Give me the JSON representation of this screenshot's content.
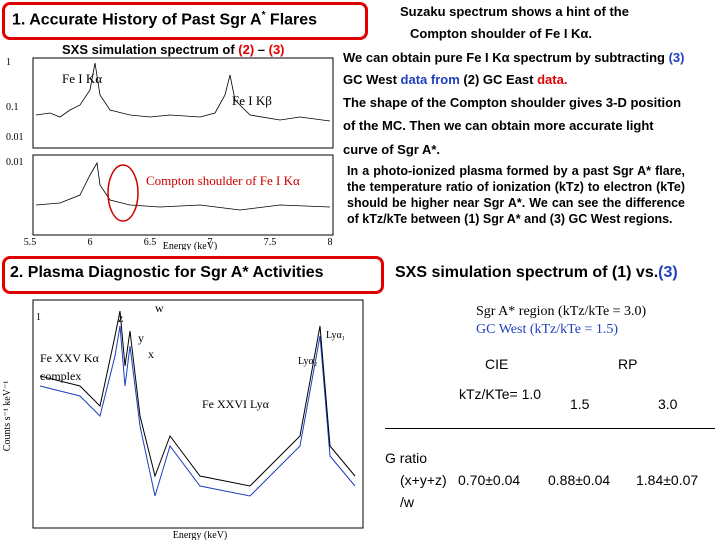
{
  "section1": {
    "title": "1.  Accurate History of Past Sgr A",
    "title_sup": "*",
    "title_end": " Flares",
    "figure": {
      "caption": [
        "SXS simulation spectrum of ",
        "(2)",
        " – ",
        "(3)"
      ],
      "yticks": [
        "1",
        "0.1",
        "0.01"
      ],
      "xticks": [
        "5.5",
        "6",
        "6.5",
        "7",
        "7.5",
        "8"
      ],
      "xlabel": "Energy (keV)",
      "labels": [
        "Fe I Kα",
        "Fe I Kβ",
        "Compton shoulder of Fe I Kα"
      ]
    },
    "text": [
      "Suzaku spectrum shows a hint of the",
      "Compton shoulder of Fe I Kα.",
      [
        "We can obtain pure Fe I Kα spectrum by subtracting ",
        "(3)"
      ],
      [
        "GC  West",
        " data from ",
        "(2) GC East",
        " data."
      ],
      "The shape of the Compton shoulder gives 3-D position",
      "of the MC.    Then we can obtain more accurate light",
      "curve of Sgr A*."
    ],
    "paragraph": "In a photo-ionized plasma formed by a past Sgr A* flare, the temperature ratio of ionization (kTz) to electron (kTe) should be higher near Sgr A*. We can see the difference of kTz/kTe between (1) Sgr A* and (3) GC West regions."
  },
  "section2": {
    "title": "2. Plasma Diagnostic for Sgr A* Activities",
    "subtitle": [
      "SXS simulation spectrum of (1) vs.",
      "(3)"
    ],
    "figure": {
      "yticks": [
        "1"
      ],
      "ylabel": "Counts s⁻¹ keV⁻¹",
      "xlabel": "Energy (keV)",
      "labels": [
        "Fe XXV Kα",
        "complex",
        "Fe XXVI Lyα",
        "w",
        "z",
        "y",
        "x",
        "Lyα₁",
        "Lyα₂"
      ]
    },
    "legend": [
      "Sgr A* region (kTz/kTe = 3.0)",
      "GC West (kTz/kTe = 1.5)"
    ]
  },
  "table": {
    "header": [
      "",
      "CIE",
      "RP"
    ],
    "rows": [
      [
        "kTz/KTe= 1.0",
        "1.5",
        "3.0"
      ],
      [
        [
          "G ratio",
          "(x+y+z)",
          "/w"
        ],
        "0.70±0.04",
        "0.88±0.04",
        "1.84±0.07"
      ]
    ]
  }
}
